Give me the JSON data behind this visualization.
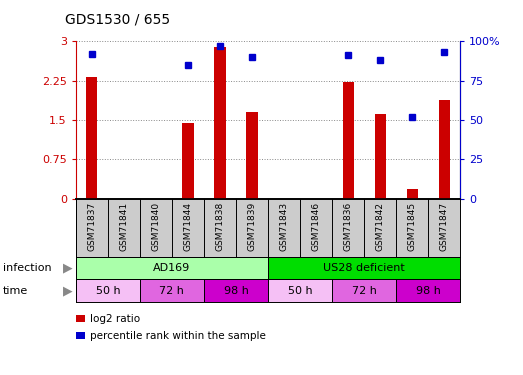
{
  "title": "GDS1530 / 655",
  "samples": [
    "GSM71837",
    "GSM71841",
    "GSM71840",
    "GSM71844",
    "GSM71838",
    "GSM71839",
    "GSM71843",
    "GSM71846",
    "GSM71836",
    "GSM71842",
    "GSM71845",
    "GSM71847"
  ],
  "log2_ratio": [
    2.32,
    0.0,
    0.0,
    1.45,
    2.9,
    1.65,
    0.0,
    0.0,
    2.22,
    1.62,
    0.18,
    1.88
  ],
  "percentile_rank": [
    92,
    0,
    0,
    85,
    97,
    90,
    0,
    0,
    91,
    88,
    52,
    93
  ],
  "ylim_left": [
    0,
    3
  ],
  "ylim_right": [
    0,
    100
  ],
  "yticks_left": [
    0,
    0.75,
    1.5,
    2.25,
    3
  ],
  "ytick_labels_left": [
    "0",
    "0.75",
    "1.5",
    "2.25",
    "3"
  ],
  "yticks_right": [
    0,
    25,
    50,
    75,
    100
  ],
  "ytick_labels_right": [
    "0",
    "25",
    "50",
    "75",
    "100%"
  ],
  "bar_color": "#cc0000",
  "dot_color": "#0000cc",
  "infection_groups": [
    {
      "label": "AD169",
      "start": 0,
      "end": 6,
      "color": "#aaffaa"
    },
    {
      "label": "US28 deficient",
      "start": 6,
      "end": 12,
      "color": "#00dd00"
    }
  ],
  "time_colors": [
    "#f5c0f5",
    "#e066e0",
    "#cc00cc",
    "#f5c0f5",
    "#e066e0",
    "#cc00cc"
  ],
  "time_groups": [
    {
      "label": "50 h",
      "start": 0,
      "end": 2
    },
    {
      "label": "72 h",
      "start": 2,
      "end": 4
    },
    {
      "label": "98 h",
      "start": 4,
      "end": 6
    },
    {
      "label": "50 h",
      "start": 6,
      "end": 8
    },
    {
      "label": "72 h",
      "start": 8,
      "end": 10
    },
    {
      "label": "98 h",
      "start": 10,
      "end": 12
    }
  ],
  "legend_items": [
    {
      "label": "log2 ratio",
      "color": "#cc0000"
    },
    {
      "label": "percentile rank within the sample",
      "color": "#0000cc"
    }
  ],
  "grid_color": "#888888",
  "sample_bg_color": "#cccccc",
  "bar_width": 0.35
}
